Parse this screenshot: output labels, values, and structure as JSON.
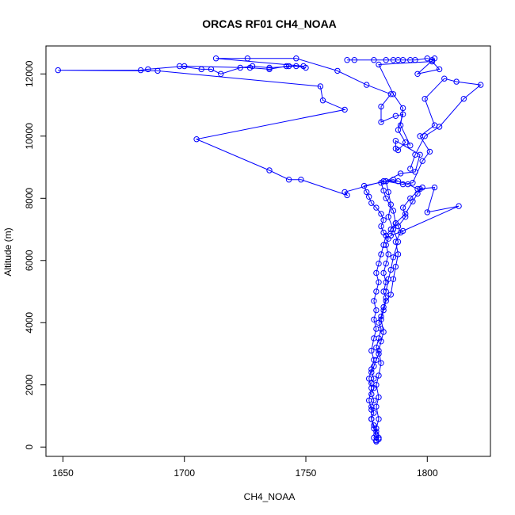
{
  "chart_data": {
    "type": "line",
    "title": "ORCAS RF01 CH4_NOAA",
    "xlabel": "CH4_NOAA",
    "ylabel": "Altitude (m)",
    "xlim": [
      1643,
      1826
    ],
    "ylim": [
      -300,
      12900
    ],
    "xticks": [
      1650,
      1700,
      1750,
      1800
    ],
    "yticks": [
      0,
      2000,
      4000,
      6000,
      8000,
      10000,
      12000
    ],
    "grid": false,
    "legend": "none",
    "series_color": "#0000ff",
    "marker": "open-circle",
    "series": [
      {
        "points": [
          [
            1779,
            180
          ],
          [
            1779,
            220
          ],
          [
            1778,
            300
          ],
          [
            1779,
            500
          ],
          [
            1778,
            700
          ],
          [
            1777,
            900
          ],
          [
            1778,
            1100
          ],
          [
            1777,
            1300
          ],
          [
            1778,
            1500
          ],
          [
            1777,
            1700
          ],
          [
            1778,
            1900
          ],
          [
            1777,
            2050
          ],
          [
            1778,
            2200
          ],
          [
            1777,
            2400
          ],
          [
            1778,
            2600
          ],
          [
            1779,
            2800
          ],
          [
            1780,
            3000
          ],
          [
            1779,
            3200
          ],
          [
            1780,
            3500
          ],
          [
            1781,
            3800
          ],
          [
            1780,
            4000
          ],
          [
            1781,
            4200
          ],
          [
            1782,
            4500
          ],
          [
            1783,
            4800
          ],
          [
            1782,
            5000
          ],
          [
            1783,
            5300
          ],
          [
            1782,
            5600
          ],
          [
            1783,
            5900
          ],
          [
            1784,
            6200
          ],
          [
            1783,
            6500
          ],
          [
            1784,
            6700
          ],
          [
            1782,
            6900
          ],
          [
            1781,
            7100
          ],
          [
            1782,
            7300
          ],
          [
            1781,
            7500
          ],
          [
            1779,
            7700
          ],
          [
            1777,
            7850
          ],
          [
            1776,
            8050
          ],
          [
            1775,
            8200
          ],
          [
            1774,
            8400
          ],
          [
            1786,
            8600
          ],
          [
            1792,
            8450
          ],
          [
            1796,
            8300
          ],
          [
            1803,
            8350
          ],
          [
            1800,
            7550
          ],
          [
            1813,
            7750
          ],
          [
            1790,
            6950
          ],
          [
            1785,
            6800
          ],
          [
            1787,
            7200
          ],
          [
            1786,
            7600
          ],
          [
            1783,
            8000
          ],
          [
            1782,
            8250
          ],
          [
            1781,
            8500
          ],
          [
            1782,
            8550
          ],
          [
            1788,
            8550
          ],
          [
            1782,
            8550
          ],
          [
            1766,
            8200
          ],
          [
            1767,
            8100
          ],
          [
            1748,
            8600
          ],
          [
            1743,
            8600
          ],
          [
            1735,
            8900
          ],
          [
            1705,
            9900
          ],
          [
            1766,
            10850
          ],
          [
            1757,
            11150
          ],
          [
            1756,
            11600
          ],
          [
            1689,
            12100
          ],
          [
            1648,
            12120
          ],
          [
            1682,
            12120
          ],
          [
            1685,
            12150
          ],
          [
            1700,
            12250
          ],
          [
            1727,
            12200
          ],
          [
            1735,
            12150
          ],
          [
            1742,
            12250
          ],
          [
            1743,
            12250
          ],
          [
            1749,
            12250
          ],
          [
            1713,
            12500
          ],
          [
            1726,
            12500
          ],
          [
            1746,
            12500
          ],
          [
            1763,
            12100
          ],
          [
            1775,
            11650
          ],
          [
            1785,
            11350
          ],
          [
            1781,
            10950
          ],
          [
            1781,
            10450
          ],
          [
            1787,
            10650
          ],
          [
            1790,
            10700
          ],
          [
            1788,
            10200
          ],
          [
            1791,
            9800
          ],
          [
            1788,
            9550
          ],
          [
            1787,
            9600
          ],
          [
            1787,
            9850
          ],
          [
            1797,
            9400
          ],
          [
            1795,
            8850
          ],
          [
            1789,
            8800
          ],
          [
            1783,
            8550
          ]
        ]
      },
      {
        "points": [
          [
            1779,
            180
          ],
          [
            1780,
            300
          ],
          [
            1779,
            600
          ],
          [
            1780,
            900
          ],
          [
            1779,
            1300
          ],
          [
            1780,
            1600
          ],
          [
            1779,
            2000
          ],
          [
            1780,
            2300
          ],
          [
            1781,
            2700
          ],
          [
            1780,
            3100
          ],
          [
            1781,
            3400
          ],
          [
            1782,
            3700
          ],
          [
            1781,
            4100
          ],
          [
            1782,
            4400
          ],
          [
            1783,
            4700
          ],
          [
            1785,
            4900
          ],
          [
            1786,
            5400
          ],
          [
            1787,
            5800
          ],
          [
            1788,
            6200
          ],
          [
            1787,
            6600
          ],
          [
            1789,
            6900
          ],
          [
            1788,
            7100
          ],
          [
            1791,
            7400
          ],
          [
            1790,
            7700
          ],
          [
            1793,
            8000
          ],
          [
            1797,
            8300
          ],
          [
            1798,
            8350
          ],
          [
            1796,
            8150
          ],
          [
            1794,
            7900
          ],
          [
            1791,
            7500
          ],
          [
            1787,
            7200
          ],
          [
            1785,
            7000
          ],
          [
            1783,
            6800
          ],
          [
            1782,
            6500
          ],
          [
            1781,
            6200
          ],
          [
            1780,
            5900
          ],
          [
            1779,
            5600
          ],
          [
            1780,
            5300
          ],
          [
            1779,
            5000
          ],
          [
            1778,
            4700
          ],
          [
            1779,
            4400
          ],
          [
            1778,
            4100
          ],
          [
            1779,
            3800
          ],
          [
            1778,
            3500
          ],
          [
            1777,
            3100
          ],
          [
            1778,
            2800
          ],
          [
            1777,
            2500
          ],
          [
            1776,
            2200
          ],
          [
            1777,
            1900
          ],
          [
            1776,
            1500
          ],
          [
            1777,
            1200
          ],
          [
            1777,
            900
          ],
          [
            1778,
            600
          ],
          [
            1779,
            400
          ],
          [
            1780,
            250
          ]
        ]
      },
      {
        "points": [
          [
            1783,
            5000
          ],
          [
            1784,
            5400
          ],
          [
            1785,
            5700
          ],
          [
            1786,
            6100
          ],
          [
            1788,
            6600
          ],
          [
            1786,
            7000
          ],
          [
            1784,
            7400
          ],
          [
            1785,
            7800
          ],
          [
            1784,
            8200
          ],
          [
            1783,
            8550
          ],
          [
            1790,
            8450
          ],
          [
            1794,
            8500
          ],
          [
            1798,
            9200
          ],
          [
            1801,
            9500
          ],
          [
            1797,
            10000
          ],
          [
            1803,
            10350
          ],
          [
            1799,
            11200
          ],
          [
            1807,
            11850
          ],
          [
            1812,
            11750
          ],
          [
            1822,
            11650
          ],
          [
            1815,
            11200
          ],
          [
            1805,
            10300
          ],
          [
            1799,
            10000
          ],
          [
            1795,
            9400
          ],
          [
            1793,
            8950
          ]
        ]
      },
      {
        "points": [
          [
            1767,
            12450
          ],
          [
            1770,
            12450
          ],
          [
            1778,
            12450
          ],
          [
            1783,
            12450
          ],
          [
            1786,
            12450
          ],
          [
            1788,
            12450
          ],
          [
            1790,
            12450
          ],
          [
            1793,
            12450
          ],
          [
            1795,
            12450
          ],
          [
            1800,
            12500
          ],
          [
            1802,
            12450
          ],
          [
            1803,
            12500
          ],
          [
            1796,
            12000
          ],
          [
            1805,
            12150
          ],
          [
            1802,
            12400
          ],
          [
            1780,
            12300
          ],
          [
            1786,
            11350
          ],
          [
            1790,
            10900
          ],
          [
            1789,
            10350
          ],
          [
            1793,
            9700
          ]
        ]
      },
      {
        "points": [
          [
            1698,
            12250
          ],
          [
            1707,
            12150
          ],
          [
            1711,
            12150
          ],
          [
            1715,
            12000
          ],
          [
            1723,
            12200
          ],
          [
            1728,
            12250
          ],
          [
            1735,
            12200
          ],
          [
            1746,
            12250
          ],
          [
            1750,
            12200
          ]
        ]
      }
    ]
  }
}
